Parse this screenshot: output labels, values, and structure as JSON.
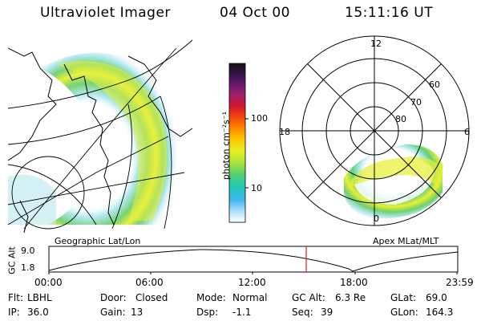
{
  "header": {
    "instrument": "Ultraviolet Imager",
    "date": "04 Oct 00",
    "time": "15:11:16 UT"
  },
  "colorbar": {
    "unit_label": "photon cm⁻²s⁻¹",
    "ticks": [
      "100",
      "10"
    ],
    "colors": [
      "#101010",
      "#3a1450",
      "#701a70",
      "#a0206a",
      "#d01830",
      "#f04010",
      "#ff8000",
      "#ffc000",
      "#e8f020",
      "#a8e040",
      "#50d070",
      "#20c8b8",
      "#40b8f0",
      "#b0e0ff",
      "#ffffff"
    ]
  },
  "left_panel": {
    "caption": "Geographic Lat/Lon"
  },
  "right_panel": {
    "caption": "Apex MLat/MLT",
    "mlt_labels": {
      "top": "12",
      "left": "18",
      "right": "6",
      "bottom": "0"
    },
    "lat_labels": [
      "60",
      "70",
      "80"
    ]
  },
  "altitude_plot": {
    "ylabel": "GC Alt",
    "yticks": [
      "9.0",
      "1.8"
    ],
    "xticks": [
      "00:00",
      "06:00",
      "12:00",
      "18:00",
      "23:59"
    ],
    "marker_color": "#e02020"
  },
  "status": {
    "flt_label": "Flt:",
    "flt_value": "LBHL",
    "ip_label": "IP:",
    "ip_value": "36.0",
    "door_label": "Door:",
    "door_value": "Closed",
    "gain_label": "Gain:",
    "gain_value": "13",
    "mode_label": "Mode:",
    "mode_value": "Normal",
    "dsp_label": "Dsp:",
    "dsp_value": "-1.1",
    "gcalt_label": "GC Alt:",
    "gcalt_value": "6.3 Re",
    "seq_label": "Seq:",
    "seq_value": "39",
    "glat_label": "GLat:",
    "glat_value": "69.0",
    "glon_label": "GLon:",
    "glon_value": "164.3"
  }
}
